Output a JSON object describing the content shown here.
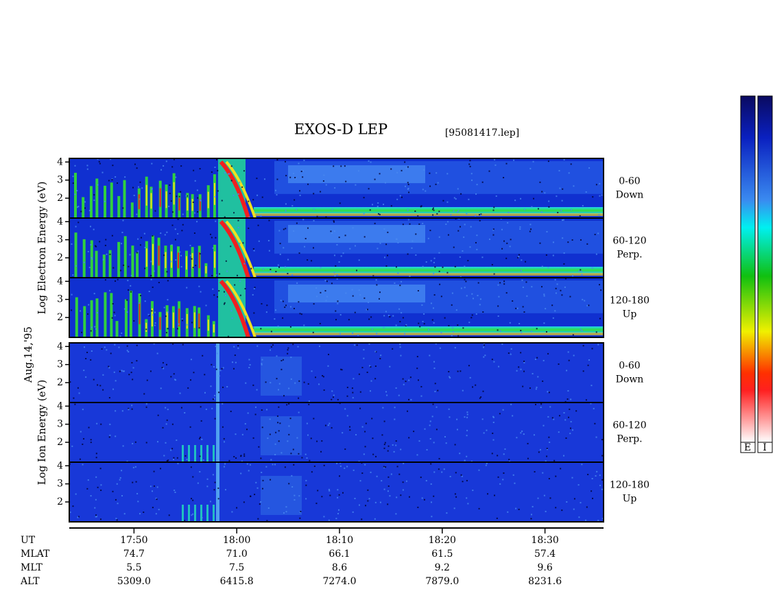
{
  "chart_data": {
    "type": "spectrogram",
    "title": "EXOS-D LEP",
    "file": "[95081417.lep]",
    "date": "Aug.14,'95",
    "xlim": [
      1063.7,
      1115.7
    ],
    "xticks": [
      {
        "value": 1070,
        "label": "17:50"
      },
      {
        "value": 1080,
        "label": "18:00"
      },
      {
        "value": 1090,
        "label": "18:10"
      },
      {
        "value": 1100,
        "label": "18:20"
      },
      {
        "value": 1110,
        "label": "18:30"
      }
    ],
    "ylim": [
      0.9,
      4.2
    ],
    "yticks": [
      2,
      3,
      4
    ],
    "groups": [
      {
        "ylabel": "Log Electron Energy (eV)",
        "panels": [
          {
            "label": [
              "0-60",
              "Down"
            ]
          },
          {
            "label": [
              "60-120",
              "Perp."
            ]
          },
          {
            "label": [
              "120-180",
              "Up"
            ]
          }
        ]
      },
      {
        "ylabel": "Log Ion Energy (eV)",
        "panels": [
          {
            "label": [
              "0-60",
              "Down"
            ]
          },
          {
            "label": [
              "60-120",
              "Perp."
            ]
          },
          {
            "label": [
              "120-180",
              "Up"
            ]
          }
        ]
      }
    ],
    "ephemeris": [
      {
        "name": "UT"
      },
      {
        "name": "MLAT",
        "values": [
          "74.7",
          "71.0",
          "66.1",
          "61.5",
          "57.4"
        ]
      },
      {
        "name": "MLT",
        "values": [
          "5.5",
          "7.5",
          "8.6",
          "9.2",
          "9.6"
        ]
      },
      {
        "name": "ALT",
        "values": [
          "5309.0",
          "6415.8",
          "7274.0",
          "7879.0",
          "8231.6"
        ]
      }
    ],
    "colorbar_labels": [
      "E",
      "I"
    ]
  }
}
